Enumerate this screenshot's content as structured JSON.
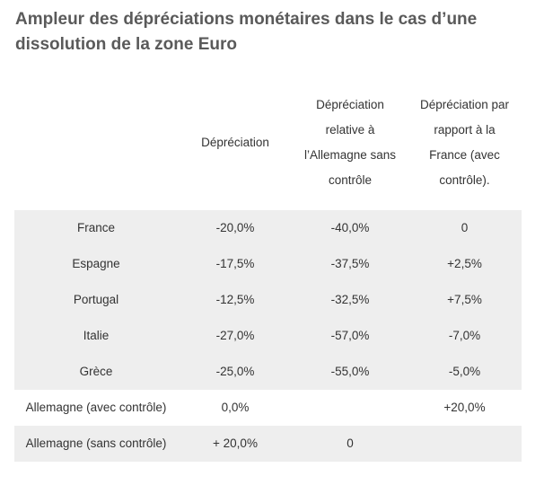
{
  "title": "Ampleur des dépréciations monétaires dans le cas d’une dissolution de la zone Euro",
  "table": {
    "headers": [
      {
        "lines": [
          ""
        ]
      },
      {
        "lines": [
          "Dépréciation"
        ]
      },
      {
        "lines": [
          "Dépréciation",
          "relative à",
          "l’Allemagne sans",
          "contrôle"
        ]
      },
      {
        "lines": [
          "Dépréciation par",
          "rapport à la",
          "France (avec",
          "contrôle)."
        ]
      }
    ],
    "rows": [
      {
        "cells": [
          "France",
          "-20,0%",
          "-40,0%",
          "0"
        ],
        "shaded": true
      },
      {
        "cells": [
          "Espagne",
          "-17,5%",
          "-37,5%",
          "+2,5%"
        ],
        "shaded": true
      },
      {
        "cells": [
          "Portugal",
          "-12,5%",
          "-32,5%",
          "+7,5%"
        ],
        "shaded": true
      },
      {
        "cells": [
          "Italie",
          "-27,0%",
          "-57,0%",
          "-7,0%"
        ],
        "shaded": true
      },
      {
        "cells": [
          "Grèce",
          "-25,0%",
          "-55,0%",
          "-5,0%"
        ],
        "shaded": true
      },
      {
        "cells": [
          "Allemagne (avec contrôle)",
          "0,0%",
          "",
          "+20,0%"
        ],
        "shaded": false
      },
      {
        "cells": [
          "Allemagne (sans contrôle)",
          "+ 20,0%",
          "0",
          ""
        ],
        "shaded": true
      }
    ]
  },
  "colors": {
    "title": "#5a5a5a",
    "text": "#333333",
    "row_shade": "#eeeeee"
  }
}
